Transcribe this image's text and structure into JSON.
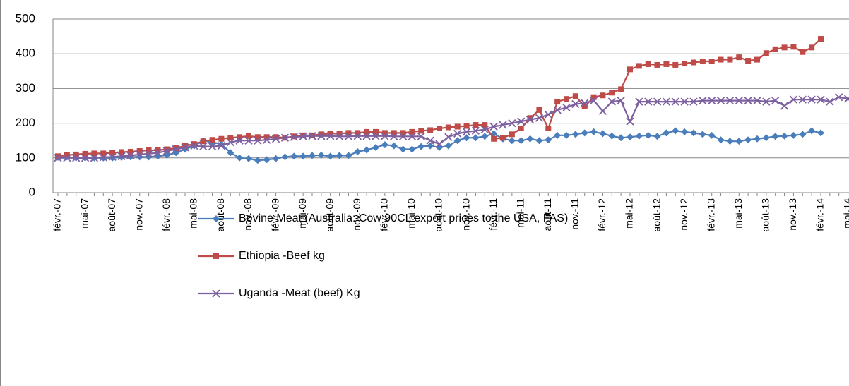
{
  "chart_data": {
    "type": "line",
    "categories": [
      "févr.-07",
      null,
      null,
      "mai-07",
      null,
      null,
      "août-07",
      null,
      null,
      "nov.-07",
      null,
      null,
      "févr.-08",
      null,
      null,
      "mai-08",
      null,
      null,
      "août-08",
      null,
      null,
      "nov.-08",
      null,
      null,
      "févr.-09",
      null,
      null,
      "mai-09",
      null,
      null,
      "août-09",
      null,
      null,
      "nov.-09",
      null,
      null,
      "févr.-10",
      null,
      null,
      "mai-10",
      null,
      null,
      "août-10",
      null,
      null,
      "nov.-10",
      null,
      null,
      "févr.-11",
      null,
      null,
      "mai-11",
      null,
      null,
      "août-11",
      null,
      null,
      "nov.-11",
      null,
      null,
      "févr.-12",
      null,
      null,
      "mai-12",
      null,
      null,
      "août-12",
      null,
      null,
      "nov.-12",
      null,
      null,
      "févr.-13",
      null,
      null,
      "mai-13",
      null,
      null,
      "août-13",
      null,
      null,
      "nov.-13",
      null,
      null,
      "févr.-14",
      null,
      null,
      "mai-14"
    ],
    "series": [
      {
        "name": "Bovine Meat (Australia: Cow 90CL export prices to the USA, FAS)",
        "color": "#4a7ebb",
        "marker": "diamond",
        "values": [
          102,
          103,
          100,
          100,
          100,
          100,
          100,
          102,
          103,
          103,
          103,
          105,
          108,
          115,
          125,
          135,
          150,
          145,
          140,
          115,
          100,
          98,
          93,
          95,
          98,
          103,
          105,
          105,
          107,
          108,
          105,
          107,
          107,
          118,
          123,
          130,
          138,
          135,
          125,
          125,
          133,
          135,
          130,
          135,
          150,
          158,
          158,
          162,
          170,
          155,
          150,
          150,
          155,
          150,
          152,
          165,
          165,
          168,
          172,
          175,
          170,
          163,
          158,
          160,
          163,
          165,
          162,
          172,
          178,
          175,
          172,
          168,
          165,
          152,
          148,
          148,
          152,
          155,
          158,
          162,
          163,
          165,
          168,
          178,
          172,
          null,
          null,
          null
        ]
      },
      {
        "name": "Ethiopia -Beef kg",
        "color": "#be4b48",
        "marker": "square",
        "values": [
          105,
          108,
          110,
          112,
          113,
          113,
          115,
          117,
          118,
          120,
          122,
          122,
          125,
          128,
          135,
          140,
          148,
          152,
          155,
          158,
          160,
          163,
          160,
          160,
          160,
          158,
          162,
          165,
          165,
          168,
          170,
          170,
          172,
          172,
          175,
          175,
          172,
          172,
          172,
          175,
          178,
          180,
          185,
          188,
          190,
          192,
          195,
          195,
          155,
          158,
          168,
          185,
          215,
          238,
          185,
          262,
          270,
          278,
          248,
          275,
          280,
          288,
          298,
          355,
          365,
          370,
          368,
          370,
          368,
          372,
          375,
          378,
          378,
          383,
          383,
          390,
          380,
          383,
          402,
          413,
          418,
          420,
          405,
          418,
          443,
          null,
          null,
          null
        ]
      },
      {
        "name": "Uganda -Meat (beef) Kg",
        "color": "#7d60a0",
        "marker": "x",
        "values": [
          100,
          100,
          100,
          100,
          100,
          102,
          103,
          105,
          107,
          110,
          112,
          115,
          120,
          125,
          130,
          135,
          133,
          133,
          135,
          145,
          150,
          150,
          150,
          152,
          155,
          158,
          160,
          162,
          163,
          163,
          163,
          162,
          162,
          163,
          163,
          163,
          163,
          162,
          162,
          162,
          162,
          150,
          140,
          160,
          170,
          175,
          178,
          182,
          190,
          195,
          200,
          205,
          210,
          215,
          225,
          238,
          245,
          255,
          258,
          265,
          235,
          262,
          265,
          205,
          262,
          262,
          262,
          262,
          262,
          262,
          262,
          265,
          265,
          265,
          265,
          265,
          265,
          265,
          262,
          265,
          250,
          268,
          268,
          268,
          268,
          262,
          275,
          270
        ]
      }
    ],
    "ylim": [
      0,
      500
    ],
    "yticks": [
      0,
      100,
      200,
      300,
      400,
      500
    ],
    "grid": true
  }
}
